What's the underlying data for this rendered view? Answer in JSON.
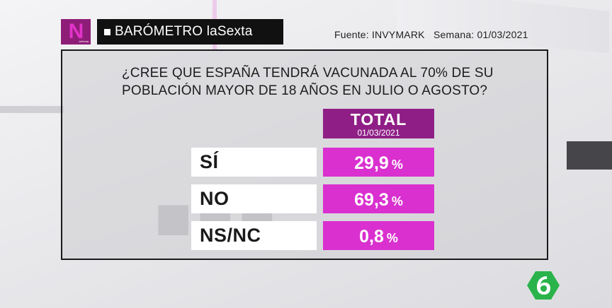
{
  "header": {
    "logo_letter": "N",
    "logo_sub": "laSexta",
    "title": "BARÓMETRO laSexta",
    "source": "Fuente: INVYMARK   Semana: 01/03/2021"
  },
  "question": {
    "line1": "¿CREE QUE ESPAÑA TENDRÁ VACUNADA AL 70% DE SU",
    "line2": "POBLACIÓN MAYOR DE 18 AÑOS EN JULIO O AGOSTO?"
  },
  "table": {
    "column_title": "TOTAL",
    "column_date": "01/03/2021",
    "rows": [
      {
        "label": "SÍ",
        "value": "29,9",
        "unit": "%"
      },
      {
        "label": "NO",
        "value": "69,3",
        "unit": "%"
      },
      {
        "label": "NS/NC",
        "value": "0,8",
        "unit": "%"
      }
    ]
  },
  "colors": {
    "header_purple": "#8f1f86",
    "value_magenta": "#d930cf",
    "channel_green": "#2ab34a"
  },
  "icons": {
    "program_logo": "noticias-n-logo",
    "channel_logo": "lasexta-6-logo"
  }
}
